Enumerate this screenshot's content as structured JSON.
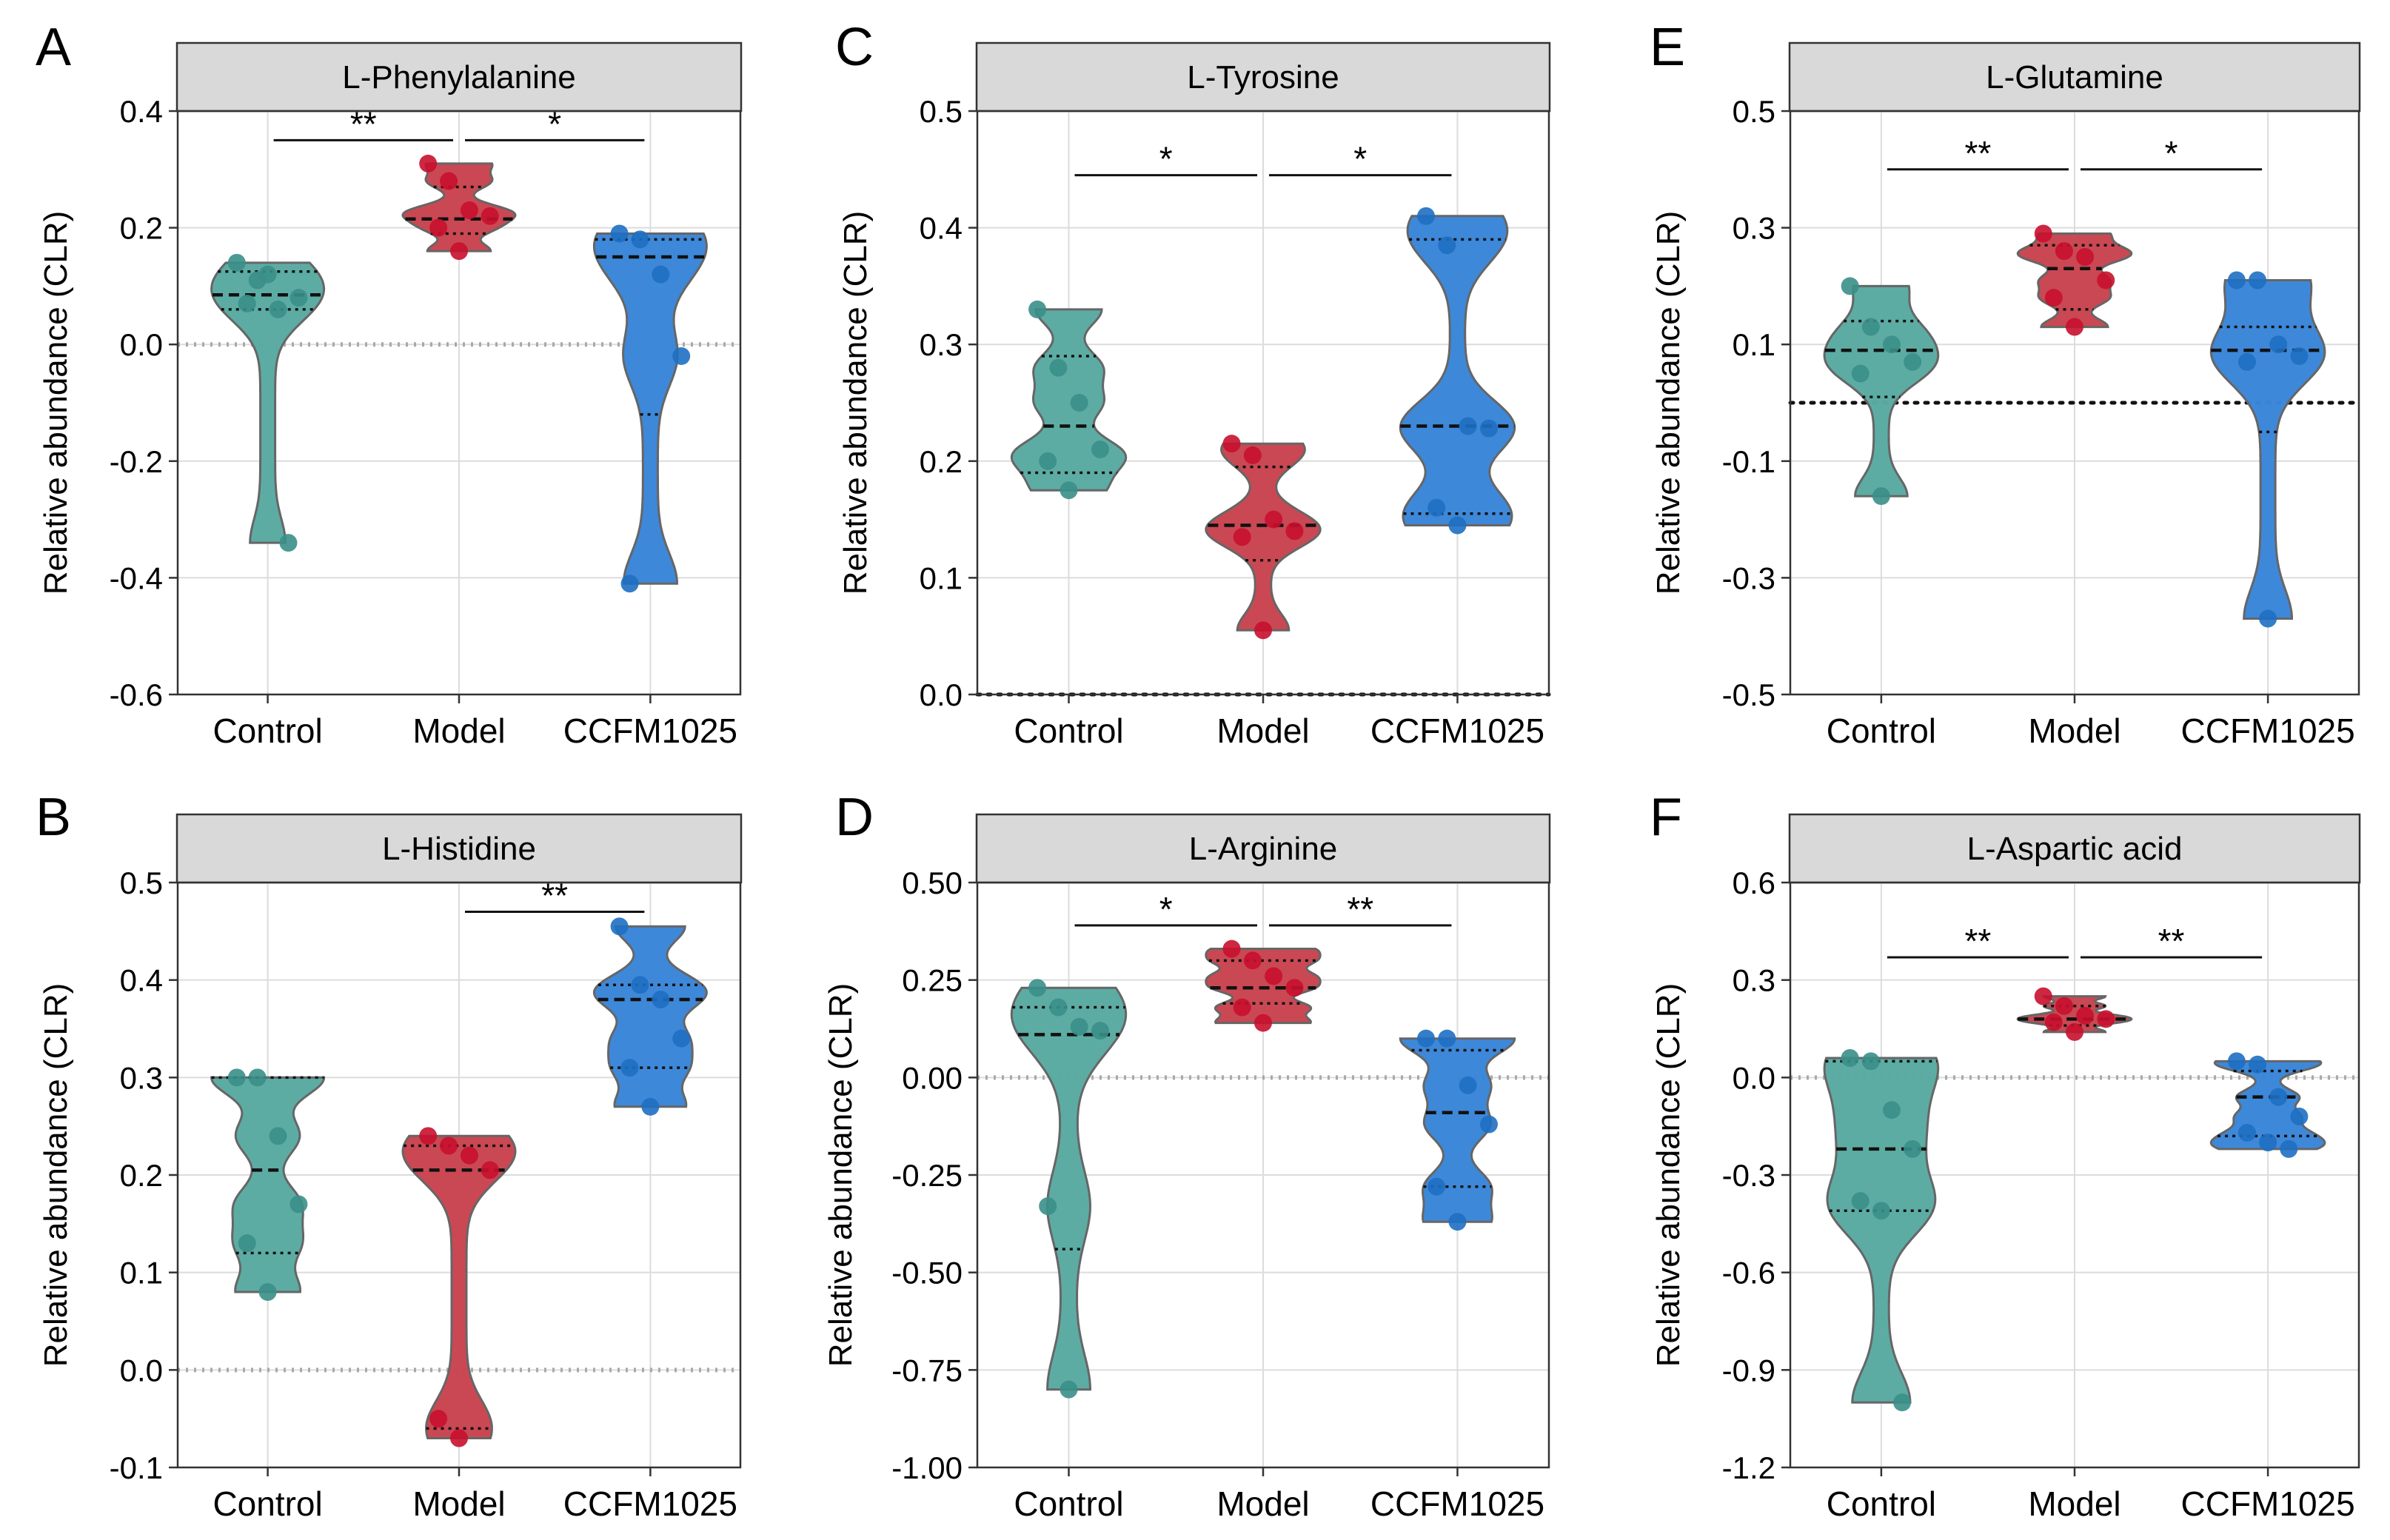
{
  "figure": {
    "y_axis_label": "Relative abundance (CLR)",
    "colors": {
      "Control": "#5aaaa2",
      "Model": "#c94450",
      "CCFM1025": "#3a86d8",
      "dot_Control": "#3a8f88",
      "dot_Model": "#c8102e",
      "dot_CCFM1025": "#1e6fc2",
      "strip_fill": "#d9d9d9",
      "grid": "#dcdcdc"
    }
  },
  "chart_data": [
    {
      "panel_label": "A",
      "type": "violin",
      "title": "L-Phenylalanine",
      "categories": [
        "Control",
        "Model",
        "CCFM1025"
      ],
      "ylabel": "Relative abundance (CLR)",
      "ylim": [
        -0.6,
        0.4
      ],
      "yticks": [
        -0.6,
        -0.4,
        -0.2,
        0.0,
        0.2,
        0.4
      ],
      "ytick_labels": [
        "-0.6",
        "-0.4",
        "-0.2",
        "0.0",
        "0.2",
        "0.4"
      ],
      "zero_line": {
        "value": 0.0,
        "style": "grey"
      },
      "groups": [
        {
          "name": "Control",
          "points": [
            0.14,
            0.11,
            0.06,
            0.08,
            0.07,
            0.12,
            -0.34
          ],
          "quartiles": [
            0.06,
            0.085,
            0.125
          ]
        },
        {
          "name": "Model",
          "points": [
            0.31,
            0.28,
            0.23,
            0.22,
            0.2,
            0.16
          ],
          "quartiles": [
            0.19,
            0.215,
            0.27
          ]
        },
        {
          "name": "CCFM1025",
          "points": [
            0.19,
            0.18,
            0.12,
            -0.02,
            -0.41
          ],
          "quartiles": [
            -0.12,
            0.15,
            0.18
          ]
        }
      ],
      "significance": [
        {
          "from": "Control",
          "to": "Model",
          "label": "**",
          "y": 0.35
        },
        {
          "from": "Model",
          "to": "CCFM1025",
          "label": "*",
          "y": 0.35
        }
      ]
    },
    {
      "panel_label": "C",
      "type": "violin",
      "title": "L-Tyrosine",
      "categories": [
        "Control",
        "Model",
        "CCFM1025"
      ],
      "ylabel": "Relative abundance (CLR)",
      "ylim": [
        0.0,
        0.5
      ],
      "yticks": [
        0.0,
        0.1,
        0.2,
        0.3,
        0.4,
        0.5
      ],
      "ytick_labels": [
        "0.0",
        "0.1",
        "0.2",
        "0.3",
        "0.4",
        "0.5"
      ],
      "zero_line": {
        "value": 0.0,
        "style": "black"
      },
      "groups": [
        {
          "name": "Control",
          "points": [
            0.33,
            0.28,
            0.25,
            0.21,
            0.2,
            0.175
          ],
          "quartiles": [
            0.19,
            0.23,
            0.29
          ]
        },
        {
          "name": "Model",
          "points": [
            0.215,
            0.205,
            0.15,
            0.14,
            0.135,
            0.055
          ],
          "quartiles": [
            0.115,
            0.145,
            0.195
          ]
        },
        {
          "name": "CCFM1025",
          "points": [
            0.41,
            0.385,
            0.23,
            0.228,
            0.16,
            0.145
          ],
          "quartiles": [
            0.155,
            0.23,
            0.39
          ]
        }
      ],
      "significance": [
        {
          "from": "Control",
          "to": "Model",
          "label": "*",
          "y": 0.445
        },
        {
          "from": "Model",
          "to": "CCFM1025",
          "label": "*",
          "y": 0.445
        }
      ]
    },
    {
      "panel_label": "E",
      "type": "violin",
      "title": "L-Glutamine",
      "categories": [
        "Control",
        "Model",
        "CCFM1025"
      ],
      "ylabel": "Relative abundance (CLR)",
      "ylim": [
        -0.5,
        0.5
      ],
      "yticks": [
        -0.5,
        -0.3,
        -0.1,
        0.1,
        0.3,
        0.5
      ],
      "ytick_labels": [
        "-0.5",
        "-0.3",
        "-0.1",
        "0.1",
        "0.3",
        "0.5"
      ],
      "zero_line": {
        "value": 0.0,
        "style": "black"
      },
      "groups": [
        {
          "name": "Control",
          "points": [
            0.2,
            0.13,
            0.1,
            0.07,
            0.05,
            -0.16
          ],
          "quartiles": [
            0.01,
            0.09,
            0.14
          ]
        },
        {
          "name": "Model",
          "points": [
            0.29,
            0.26,
            0.25,
            0.21,
            0.18,
            0.13
          ],
          "quartiles": [
            0.16,
            0.23,
            0.27
          ]
        },
        {
          "name": "CCFM1025",
          "points": [
            0.21,
            0.21,
            0.1,
            0.08,
            0.07,
            -0.37
          ],
          "quartiles": [
            -0.05,
            0.09,
            0.13
          ]
        }
      ],
      "significance": [
        {
          "from": "Control",
          "to": "Model",
          "label": "**",
          "y": 0.4
        },
        {
          "from": "Model",
          "to": "CCFM1025",
          "label": "*",
          "y": 0.4
        }
      ]
    },
    {
      "panel_label": "B",
      "type": "violin",
      "title": "L-Histidine",
      "categories": [
        "Control",
        "Model",
        "CCFM1025"
      ],
      "ylabel": "Relative abundance (CLR)",
      "ylim": [
        -0.1,
        0.5
      ],
      "yticks": [
        -0.1,
        0.0,
        0.1,
        0.2,
        0.3,
        0.4,
        0.5
      ],
      "ytick_labels": [
        "-0.1",
        "0.0",
        "0.1",
        "0.2",
        "0.3",
        "0.4",
        "0.5"
      ],
      "zero_line": {
        "value": 0.0,
        "style": "grey"
      },
      "groups": [
        {
          "name": "Control",
          "points": [
            0.3,
            0.3,
            0.24,
            0.17,
            0.13,
            0.08
          ],
          "quartiles": [
            0.12,
            0.205,
            0.3
          ]
        },
        {
          "name": "Model",
          "points": [
            0.24,
            0.23,
            0.22,
            0.205,
            -0.05,
            -0.07
          ],
          "quartiles": [
            -0.06,
            0.205,
            0.23
          ]
        },
        {
          "name": "CCFM1025",
          "points": [
            0.455,
            0.395,
            0.38,
            0.34,
            0.31,
            0.27
          ],
          "quartiles": [
            0.31,
            0.38,
            0.395
          ]
        }
      ],
      "significance": [
        {
          "from": "Model",
          "to": "CCFM1025",
          "label": "**",
          "y": 0.47
        }
      ]
    },
    {
      "panel_label": "D",
      "type": "violin",
      "title": "L-Arginine",
      "categories": [
        "Control",
        "Model",
        "CCFM1025"
      ],
      "ylabel": "Relative abundance (CLR)",
      "ylim": [
        -1.0,
        0.5
      ],
      "yticks": [
        -1.0,
        -0.75,
        -0.5,
        -0.25,
        0.0,
        0.25,
        0.5
      ],
      "ytick_labels": [
        "-1.00",
        "-0.75",
        "-0.50",
        "-0.25",
        "0.00",
        "0.25",
        "0.50"
      ],
      "zero_line": {
        "value": 0.0,
        "style": "grey"
      },
      "groups": [
        {
          "name": "Control",
          "points": [
            0.23,
            0.18,
            0.13,
            0.12,
            -0.33,
            -0.8
          ],
          "quartiles": [
            -0.44,
            0.11,
            0.18
          ]
        },
        {
          "name": "Model",
          "points": [
            0.33,
            0.3,
            0.26,
            0.23,
            0.18,
            0.14
          ],
          "quartiles": [
            0.19,
            0.23,
            0.3
          ]
        },
        {
          "name": "CCFM1025",
          "points": [
            0.1,
            0.1,
            -0.02,
            -0.12,
            -0.28,
            -0.37
          ],
          "quartiles": [
            -0.28,
            -0.09,
            0.07
          ]
        }
      ],
      "significance": [
        {
          "from": "Control",
          "to": "Model",
          "label": "*",
          "y": 0.39
        },
        {
          "from": "Model",
          "to": "CCFM1025",
          "label": "**",
          "y": 0.39
        }
      ]
    },
    {
      "panel_label": "F",
      "type": "violin",
      "title": "L-Aspartic acid",
      "categories": [
        "Control",
        "Model",
        "CCFM1025"
      ],
      "ylabel": "Relative abundance (CLR)",
      "ylim": [
        -1.2,
        0.6
      ],
      "yticks": [
        -1.2,
        -0.9,
        -0.6,
        -0.3,
        0.0,
        0.3,
        0.6
      ],
      "ytick_labels": [
        "-1.2",
        "-0.9",
        "-0.6",
        "-0.3",
        "0.0",
        "0.3",
        "0.6"
      ],
      "zero_line": {
        "value": 0.0,
        "style": "grey"
      },
      "groups": [
        {
          "name": "Control",
          "points": [
            0.06,
            0.05,
            -0.1,
            -0.22,
            -0.38,
            -0.41,
            -1.0
          ],
          "quartiles": [
            -0.41,
            -0.22,
            0.05
          ]
        },
        {
          "name": "Model",
          "points": [
            0.25,
            0.22,
            0.19,
            0.18,
            0.17,
            0.14
          ],
          "quartiles": [
            0.16,
            0.18,
            0.22
          ]
        },
        {
          "name": "CCFM1025",
          "points": [
            0.05,
            0.04,
            -0.06,
            -0.12,
            -0.17,
            -0.2,
            -0.22
          ],
          "quartiles": [
            -0.18,
            -0.06,
            0.02
          ]
        }
      ],
      "significance": [
        {
          "from": "Control",
          "to": "Model",
          "label": "**",
          "y": 0.37
        },
        {
          "from": "Model",
          "to": "CCFM1025",
          "label": "**",
          "y": 0.37
        }
      ]
    }
  ]
}
